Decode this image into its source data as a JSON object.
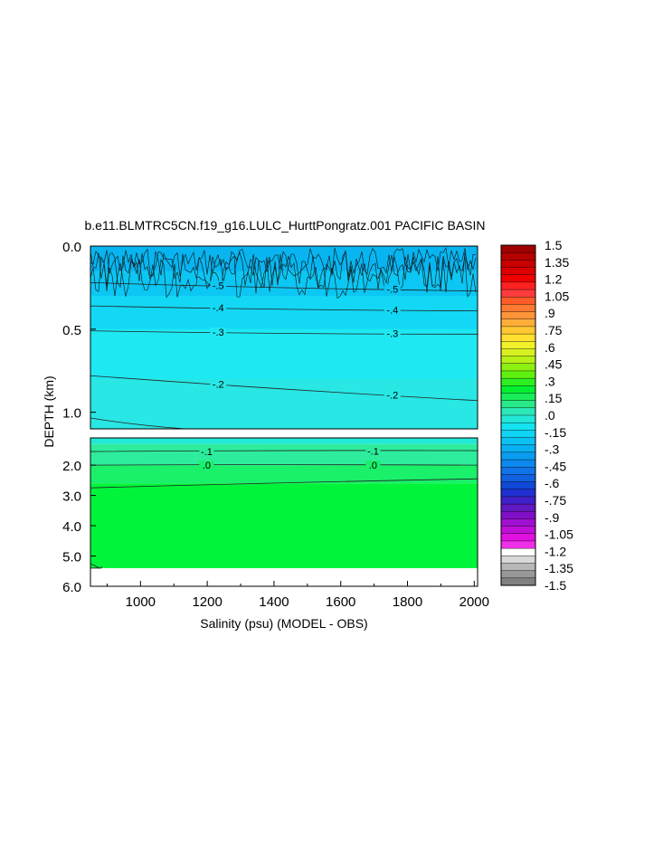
{
  "chart_data": {
    "type": "contour",
    "title": "b.e11.BLMTRC5CN.f19_g16.LULC_HurttPongratz.001 PACIFIC BASIN",
    "xlabel": "Salinity (psu) (MODEL - OBS)",
    "ylabel": "DEPTH (km)",
    "xlim": [
      850,
      2010
    ],
    "xticks": [
      "1000",
      "1200",
      "1400",
      "1600",
      "1800",
      "2000"
    ],
    "xtick_values": [
      1000,
      1200,
      1400,
      1600,
      1800,
      2000
    ],
    "upper_panel": {
      "ylim": [
        0.0,
        1.1
      ],
      "yticks": [
        "0.0",
        "0.5",
        "1.0"
      ],
      "ytick_values": [
        0.0,
        0.5,
        1.0
      ],
      "bands": [
        {
          "from": 0.0,
          "to": 0.15,
          "color": "#08b5f0"
        },
        {
          "from": 0.15,
          "to": 0.3,
          "color": "#0cc6f3"
        },
        {
          "from": 0.3,
          "to": 0.5,
          "color": "#12d8f5"
        },
        {
          "from": 0.5,
          "to": 0.8,
          "color": "#1ee8f2"
        },
        {
          "from": 0.8,
          "to": 1.1,
          "color": "#28e7e4"
        }
      ],
      "contours": [
        {
          "label": "-.5",
          "depth_start": 0.22,
          "depth_end": 0.27
        },
        {
          "label": "-.4",
          "depth_start": 0.36,
          "depth_end": 0.39
        },
        {
          "label": "-.3",
          "depth_start": 0.51,
          "depth_end": 0.53
        },
        {
          "label": "-.2",
          "depth_start": 0.78,
          "depth_end": 0.93
        }
      ]
    },
    "lower_panel": {
      "ylim": [
        1.1,
        6.0
      ],
      "yticks": [
        "2.0",
        "3.0",
        "4.0",
        "5.0",
        "6.0"
      ],
      "ytick_values": [
        2.0,
        3.0,
        4.0,
        5.0,
        6.0
      ],
      "bands": [
        {
          "from": 1.1,
          "to": 1.3,
          "color": "#22e8d6"
        },
        {
          "from": 1.3,
          "to": 2.0,
          "color": "#2ded9c"
        },
        {
          "from": 2.0,
          "to": 2.6,
          "color": "#1af06a"
        },
        {
          "from": 2.6,
          "to": 5.4,
          "color": "#00f53a"
        }
      ],
      "contours": [
        {
          "label": "-.1",
          "depth_start": 1.55,
          "depth_end": 1.52
        },
        {
          "label": ".0",
          "depth_start": 2.0,
          "depth_end": 2.0
        },
        {
          "label": "",
          "depth_start": 2.75,
          "depth_end": 2.45
        }
      ],
      "no_data_below": 5.4
    },
    "colorbar": {
      "labels": [
        "1.5",
        "1.35",
        "1.2",
        "1.05",
        ".9",
        ".75",
        ".6",
        ".45",
        ".3",
        ".15",
        ".0",
        "-.15",
        "-.3",
        "-.45",
        "-.6",
        "-.75",
        "-.9",
        "-1.05",
        "-1.2",
        "-1.35",
        "-1.5"
      ],
      "colors": [
        "#a00000",
        "#b40000",
        "#c80000",
        "#dc0000",
        "#f00000",
        "#ff2020",
        "#ff3a3a",
        "#ff5a28",
        "#ff7a30",
        "#ff9438",
        "#ffae3a",
        "#ffc832",
        "#ffe030",
        "#f2f028",
        "#d8f020",
        "#b8f018",
        "#8cf010",
        "#60f010",
        "#2cf020",
        "#00f030",
        "#18ec58",
        "#28ea88",
        "#2ae8b8",
        "#22e8d8",
        "#14e4f0",
        "#10d4f4",
        "#0cc2f4",
        "#08b0f2",
        "#0a9cf0",
        "#0c88ee",
        "#1074e8",
        "#1060e0",
        "#1048d8",
        "#2030d0",
        "#4020c8",
        "#6018c0",
        "#8010c8",
        "#a010d0",
        "#c010d8",
        "#e010e0",
        "#f030e8",
        "#ffffff",
        "#d8d8d8",
        "#b8b8b8",
        "#989898",
        "#808080"
      ]
    }
  }
}
